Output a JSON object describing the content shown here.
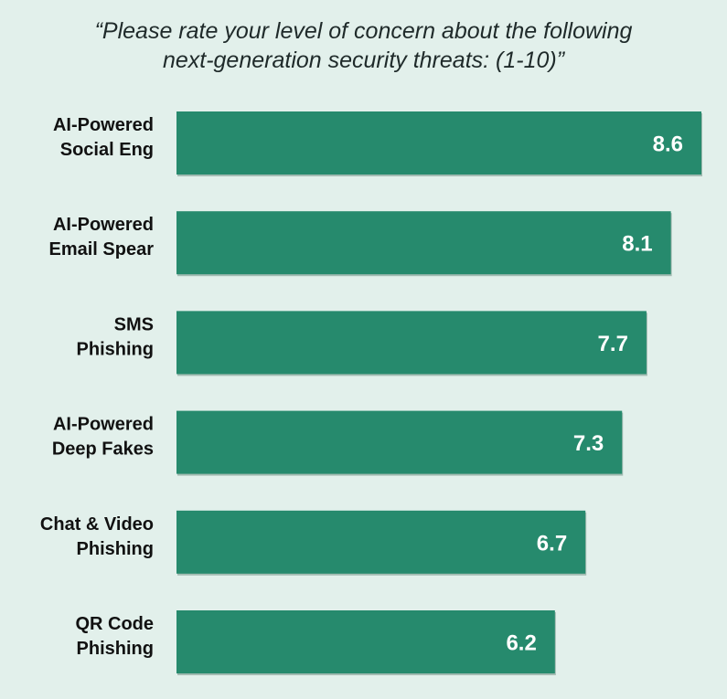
{
  "title_lines": [
    "“Please rate your level of concern about the following",
    "next-generation security threats: (1-10)”"
  ],
  "colors": {
    "background": "#e2f0eb",
    "bar": "#268a6d",
    "bar_shadow": "#6f8f84",
    "label": "#111111",
    "value_text": "#ffffff"
  },
  "chart_data": {
    "type": "bar",
    "orientation": "horizontal",
    "title": "“Please rate your level of concern about the following next-generation security threats: (1-10)”",
    "categories": [
      [
        "AI-Powered",
        "Social Eng"
      ],
      [
        "AI-Powered",
        "Email Spear"
      ],
      [
        "SMS",
        "Phishing"
      ],
      [
        "AI-Powered",
        "Deep Fakes"
      ],
      [
        "Chat & Video",
        "Phishing"
      ],
      [
        "QR Code",
        "Phishing"
      ]
    ],
    "values": [
      8.6,
      8.1,
      7.7,
      7.3,
      6.7,
      6.2
    ],
    "value_labels": [
      "8.6",
      "8.1",
      "7.7",
      "7.3",
      "6.7",
      "6.2"
    ],
    "xlim": [
      0,
      8.6
    ],
    "xlabel": "",
    "ylabel": "",
    "grid": false,
    "legend": "none"
  }
}
